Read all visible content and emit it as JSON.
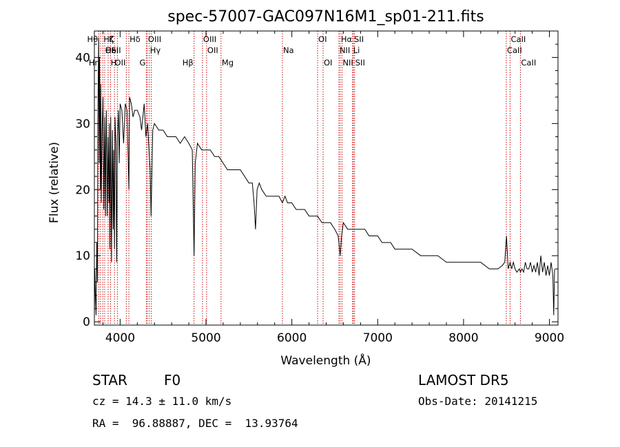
{
  "chart_data": {
    "type": "line",
    "title": "spec-57007-GAC097N16M1_sp01-211.fits",
    "xlabel": "Wavelength (Å)",
    "ylabel": "Flux (relative)",
    "xlim": [
      3700,
      9100
    ],
    "ylim": [
      -0.5,
      44
    ],
    "xticks": [
      4000,
      5000,
      6000,
      7000,
      8000,
      9000
    ],
    "yticks": [
      0,
      10,
      20,
      30,
      40
    ],
    "grid": false,
    "series": [
      {
        "x": [
          3700,
          3705,
          3712,
          3720,
          3728,
          3735,
          3740,
          3745,
          3750,
          3755,
          3760,
          3765,
          3770,
          3775,
          3780,
          3790,
          3800,
          3810,
          3820,
          3830,
          3835,
          3840,
          3850,
          3860,
          3870,
          3875,
          3880,
          3890,
          3900,
          3910,
          3920,
          3925,
          3930,
          3934,
          3940,
          3950,
          3960,
          3968,
          3975,
          3980,
          3990,
          4000,
          4020,
          4040,
          4060,
          4080,
          4102,
          4110,
          4130,
          4150,
          4170,
          4200,
          4230,
          4250,
          4280,
          4300,
          4320,
          4340,
          4350,
          4360,
          4380,
          4400,
          4450,
          4500,
          4550,
          4600,
          4650,
          4700,
          4750,
          4800,
          4840,
          4861,
          4875,
          4900,
          4950,
          5000,
          5050,
          5100,
          5150,
          5200,
          5250,
          5300,
          5350,
          5400,
          5450,
          5500,
          5540,
          5560,
          5577,
          5595,
          5620,
          5650,
          5700,
          5750,
          5800,
          5850,
          5890,
          5920,
          5950,
          6000,
          6050,
          6100,
          6150,
          6200,
          6250,
          6300,
          6350,
          6400,
          6450,
          6500,
          6540,
          6563,
          6580,
          6600,
          6650,
          6700,
          6750,
          6800,
          6850,
          6900,
          6950,
          7000,
          7050,
          7100,
          7150,
          7200,
          7300,
          7400,
          7500,
          7600,
          7700,
          7800,
          7900,
          8000,
          8100,
          8200,
          8300,
          8400,
          8450,
          8480,
          8500,
          8520,
          8542,
          8560,
          8580,
          8600,
          8620,
          8650,
          8662,
          8680,
          8700,
          8720,
          8740,
          8760,
          8780,
          8800,
          8820,
          8840,
          8860,
          8880,
          8900,
          8920,
          8940,
          8960,
          8980,
          9000,
          9020,
          9040,
          9050,
          9060
        ],
        "y": [
          0.5,
          8,
          4,
          1,
          12,
          6,
          30,
          37,
          43,
          24,
          40,
          31,
          20,
          36,
          18,
          29,
          34,
          17,
          31,
          16,
          27,
          32,
          16,
          28,
          18,
          30,
          11,
          31,
          9,
          29,
          14,
          26,
          16,
          11,
          31,
          27,
          9,
          28,
          30,
          32,
          24,
          33,
          32,
          27,
          33,
          32,
          20,
          34,
          33,
          31,
          32,
          32,
          31,
          29,
          33,
          28,
          30,
          25,
          23,
          16,
          29,
          30,
          29,
          29,
          28,
          28,
          28,
          27,
          28,
          27,
          26,
          10,
          24,
          27,
          26,
          26,
          26,
          25,
          25,
          24,
          23,
          23,
          23,
          23,
          22,
          21,
          21,
          18,
          14,
          20,
          21,
          20,
          19,
          19,
          19,
          19,
          18,
          19,
          18,
          18,
          17,
          17,
          17,
          16,
          16,
          16,
          15,
          15,
          15,
          14,
          13,
          10,
          13,
          15,
          14,
          14,
          14,
          14,
          14,
          13,
          13,
          13,
          12,
          12,
          12,
          11,
          11,
          11,
          10,
          10,
          10,
          9,
          9,
          9,
          9,
          9,
          8,
          8,
          8.5,
          9,
          13,
          8,
          9,
          8,
          9,
          8,
          7.5,
          8,
          7.5,
          8,
          7.5,
          9,
          8,
          8,
          9,
          7.5,
          8.5,
          7.5,
          9,
          7,
          10,
          7.5,
          9,
          7,
          8.5,
          7,
          9,
          7,
          1,
          8
        ]
      }
    ],
    "lines": [
      {
        "x": 3750,
        "label": "Hθ",
        "row": 0,
        "side": "left"
      },
      {
        "x": 3771,
        "label": "Hη",
        "row": 2,
        "side": "left"
      },
      {
        "x": 3798,
        "label": "Hζ",
        "row": 0,
        "side": "right"
      },
      {
        "x": 3820,
        "label": "HeI",
        "row": 1,
        "side": "right"
      },
      {
        "x": 3860,
        "label": "K",
        "row": 0,
        "side": "right"
      },
      {
        "x": 3889,
        "label": "SII",
        "row": 1,
        "side": "right"
      },
      {
        "x": 3934,
        "label": "OI",
        "row": 1,
        "side": "left"
      },
      {
        "x": 3968,
        "label": "H",
        "row": 2,
        "side": "left"
      },
      {
        "x": 4072,
        "label": "OII",
        "row": 2,
        "side": "left"
      },
      {
        "x": 4102,
        "label": "Hδ",
        "row": 0,
        "side": "right"
      },
      {
        "x": 4305,
        "label": "G",
        "row": 2,
        "side": "left"
      },
      {
        "x": 4317,
        "label": "OIII",
        "row": 0,
        "side": "right"
      },
      {
        "x": 4340,
        "label": "Hγ",
        "row": 1,
        "side": "right"
      },
      {
        "x": 4363,
        "label": "",
        "row": 0,
        "side": "right"
      },
      {
        "x": 4861,
        "label": "Hβ",
        "row": 2,
        "side": "left"
      },
      {
        "x": 4959,
        "label": "OIII",
        "row": 0,
        "side": "right"
      },
      {
        "x": 5007,
        "label": "OII",
        "row": 1,
        "side": "right"
      },
      {
        "x": 5175,
        "label": "Mg",
        "row": 2,
        "side": "right"
      },
      {
        "x": 5890,
        "label": "Na",
        "row": 1,
        "side": "right"
      },
      {
        "x": 6300,
        "label": "OI",
        "row": 0,
        "side": "right"
      },
      {
        "x": 6364,
        "label": "OI",
        "row": 2,
        "side": "right"
      },
      {
        "x": 6548,
        "label": "NII",
        "row": 1,
        "side": "right"
      },
      {
        "x": 6563,
        "label": "Hα",
        "row": 0,
        "side": "right"
      },
      {
        "x": 6584,
        "label": "NII",
        "row": 2,
        "side": "right"
      },
      {
        "x": 6707,
        "label": "Li",
        "row": 1,
        "side": "right"
      },
      {
        "x": 6717,
        "label": "SII",
        "row": 0,
        "side": "right"
      },
      {
        "x": 6731,
        "label": "SII",
        "row": 2,
        "side": "right"
      },
      {
        "x": 8498,
        "label": "CaII",
        "row": 1,
        "side": "right"
      },
      {
        "x": 8542,
        "label": "CaII",
        "row": 0,
        "side": "right"
      },
      {
        "x": 8662,
        "label": "CaII",
        "row": 2,
        "side": "right"
      }
    ],
    "line_color": "#cc0000"
  },
  "info": {
    "object_class": "STAR",
    "subclass": "F0",
    "survey": "LAMOST DR5",
    "cz": "cz = 14.3 ± 11.0 km/s",
    "obs_date": "Obs-Date: 20141215",
    "coords": "RA =  96.88887, DEC =  13.93764"
  }
}
